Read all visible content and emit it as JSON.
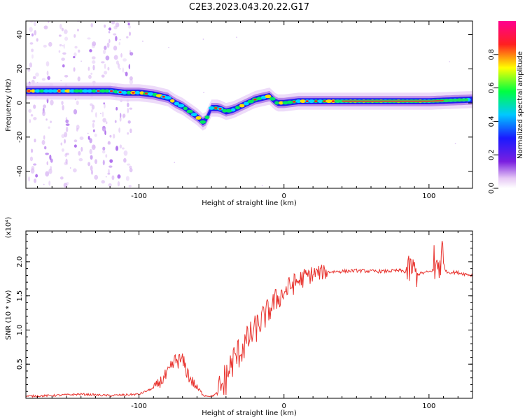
{
  "figure_title": "C2E3.2023.043.20.22.G17",
  "chart_data": [
    {
      "type": "heatmap",
      "xlabel": "Height of straight line (km)",
      "ylabel": "Frequency (Hz)",
      "xlim": [
        -178,
        130
      ],
      "ylim": [
        -50,
        48
      ],
      "x_ticks": [
        -100,
        0,
        100
      ],
      "y_ticks": [
        -40,
        -20,
        0,
        20,
        40
      ],
      "colorbar": {
        "label": "Normalized spectral amplitude",
        "range": [
          0.0,
          1.0
        ],
        "ticks": [
          "0.0",
          "0.2",
          "0.4",
          "0.6",
          "0.8"
        ],
        "colormap": "rainbow (white-purple-blue-cyan-green-yellow-red-magenta)"
      },
      "ridge": {
        "x": [
          -178,
          -160,
          -140,
          -120,
          -110,
          -100,
          -90,
          -80,
          -75,
          -70,
          -65,
          -60,
          -55,
          -50,
          -45,
          -40,
          -35,
          -30,
          -25,
          -20,
          -15,
          -10,
          -5,
          0,
          10,
          20,
          40,
          60,
          80,
          100,
          130
        ],
        "freq": [
          7,
          7,
          7,
          7,
          6,
          6,
          5,
          3,
          0,
          -2,
          -5,
          -8,
          -12,
          -3,
          -3,
          -5,
          -4,
          -2,
          0,
          2,
          3,
          4,
          0,
          0,
          1,
          1,
          1,
          1,
          1,
          1,
          2
        ]
      },
      "noise_region_x": [
        -178,
        -108
      ]
    },
    {
      "type": "line",
      "xlabel": "Height of straight line (km)",
      "ylabel": "SNR (10 * v/v)",
      "scale_label": "(x10⁴)",
      "xlim": [
        -178,
        130
      ],
      "ylim": [
        0,
        2.45
      ],
      "x_ticks": [
        -100,
        0,
        100
      ],
      "y_ticks": [
        "0.5",
        "1.0",
        "1.5",
        "2.0"
      ],
      "series": [
        {
          "color": "#e8322d",
          "x": [
            -178,
            -160,
            -140,
            -120,
            -100,
            -90,
            -85,
            -80,
            -75,
            -70,
            -65,
            -60,
            -55,
            -50,
            -45,
            -40,
            -35,
            -30,
            -25,
            -20,
            -15,
            -10,
            -5,
            0,
            5,
            10,
            15,
            20,
            25,
            30,
            40,
            50,
            60,
            70,
            80,
            85,
            88,
            92,
            100,
            105,
            108,
            112,
            120,
            130
          ],
          "y": [
            0.03,
            0.04,
            0.06,
            0.04,
            0.06,
            0.15,
            0.25,
            0.35,
            0.55,
            0.55,
            0.3,
            0.15,
            0.04,
            0.03,
            0.08,
            0.3,
            0.55,
            0.7,
            0.85,
            1.0,
            1.15,
            1.3,
            1.45,
            1.55,
            1.65,
            1.72,
            1.78,
            1.82,
            1.84,
            1.85,
            1.86,
            1.87,
            1.86,
            1.86,
            1.87,
            1.85,
            1.9,
            1.82,
            1.85,
            1.9,
            2.1,
            1.85,
            1.84,
            1.8
          ]
        }
      ]
    }
  ]
}
